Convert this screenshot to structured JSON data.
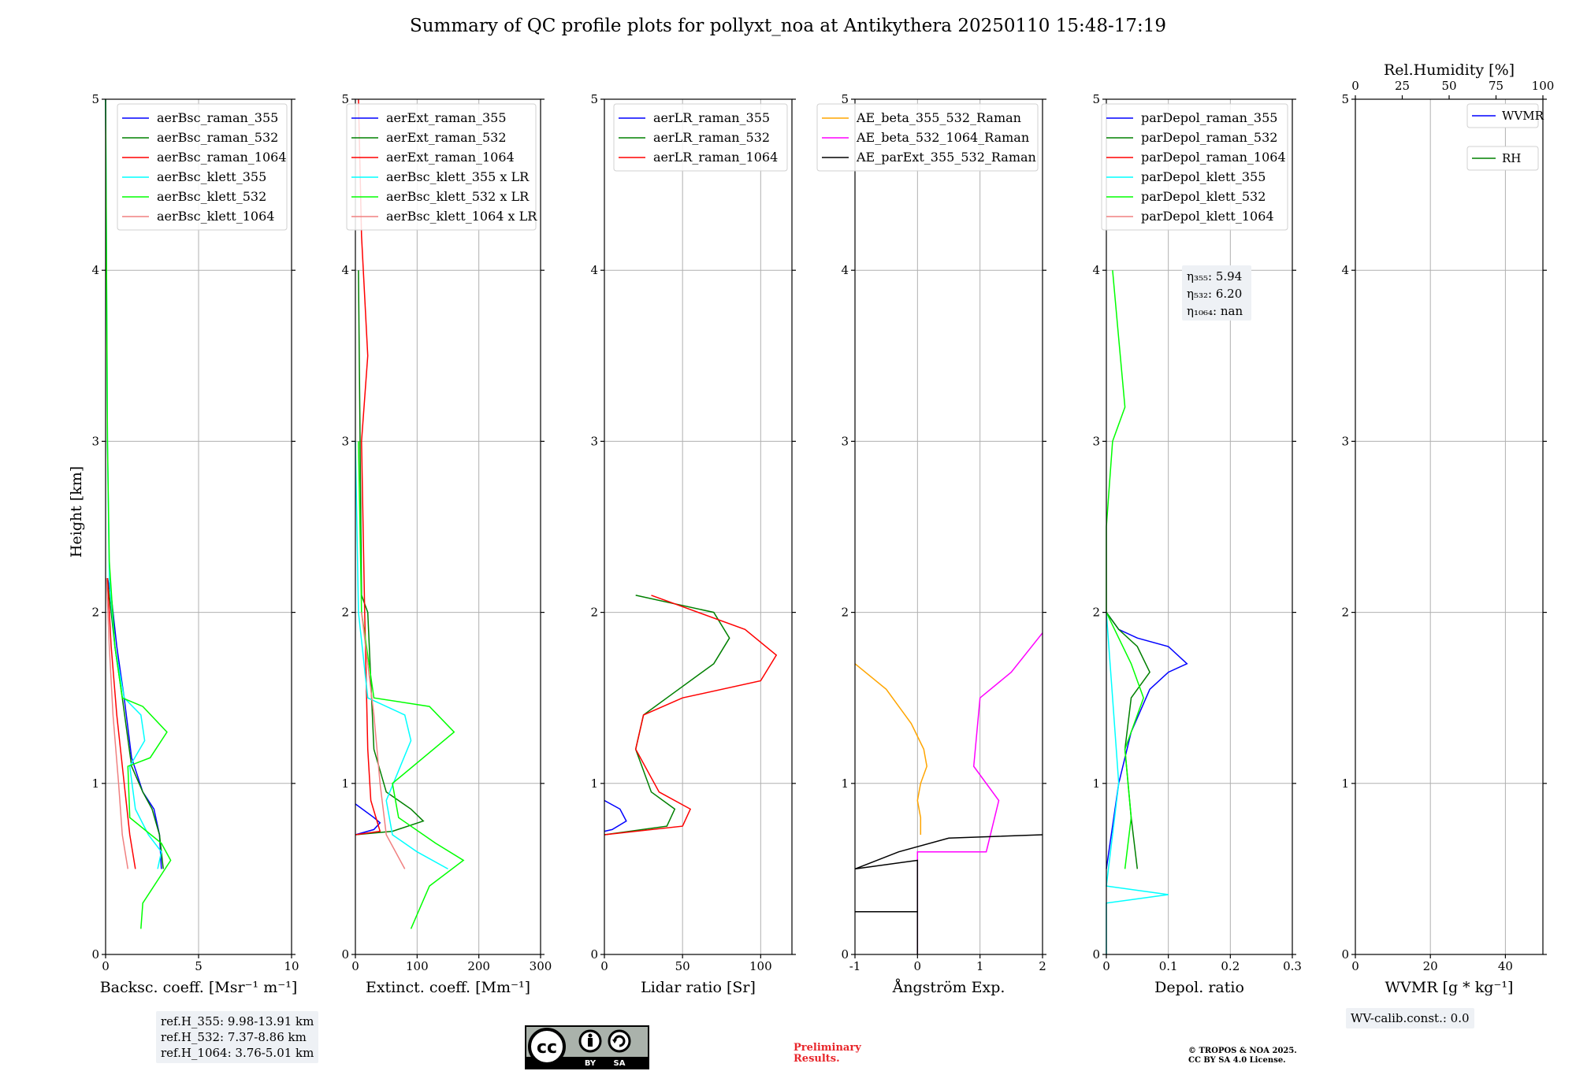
{
  "title": "Summary of QC profile plots for pollyxt_noa at Antikythera 20250110 15:48-17:19",
  "colors": {
    "c355": "#0000ff",
    "c532": "#008000",
    "c1064": "#ff0000",
    "k355": "#00ffff",
    "k532": "#00ff00",
    "k1064": "#f08080",
    "ae1": "#ffa500",
    "ae2": "#ff00ff",
    "ae3": "#000000"
  },
  "ylabel": "Height [km]",
  "ref_info": [
    "ref.H_355: 9.98-13.91 km",
    "ref.H_532: 7.37-8.86 km",
    "ref.H_1064: 3.76-5.01 km"
  ],
  "wv_calib": "WV-calib.const.: 0.0",
  "eta_info": [
    "η₃₅₅: 5.94",
    "η₅₃₂: 6.20",
    "η₁₀₆₄: nan"
  ],
  "preliminary": [
    "Preliminary",
    "Results."
  ],
  "copyright": [
    "© TROPOS & NOA 2025.",
    "CC BY SA 4.0 License."
  ],
  "license_icon": "cc-by-sa-icon",
  "chart_data": [
    {
      "type": "line",
      "xlabel": "Backsc. coeff. [Msr⁻¹ m⁻¹]",
      "xlim": [
        0,
        10
      ],
      "xticks": [
        0,
        5,
        10
      ],
      "ylim": [
        0,
        5
      ],
      "yticks": [
        0,
        1,
        2,
        3,
        4,
        5
      ],
      "legend": "top-right",
      "series": [
        {
          "name": "aerBsc_raman_355",
          "color": "c355",
          "points": [
            [
              3.0,
              0.5
            ],
            [
              2.9,
              0.7
            ],
            [
              2.6,
              0.85
            ],
            [
              2.0,
              0.95
            ],
            [
              1.4,
              1.15
            ],
            [
              1.0,
              1.5
            ],
            [
              0.6,
              1.8
            ],
            [
              0.3,
              2.1
            ],
            [
              0.1,
              2.2
            ]
          ]
        },
        {
          "name": "aerBsc_raman_532",
          "color": "c532",
          "points": [
            [
              3.1,
              0.5
            ],
            [
              2.9,
              0.7
            ],
            [
              2.5,
              0.85
            ],
            [
              2.0,
              0.95
            ],
            [
              1.4,
              1.1
            ],
            [
              0.9,
              1.5
            ],
            [
              0.5,
              1.8
            ],
            [
              0.2,
              2.1
            ],
            [
              0.1,
              2.2
            ]
          ]
        },
        {
          "name": "aerBsc_raman_1064",
          "color": "c1064",
          "points": [
            [
              1.6,
              0.5
            ],
            [
              1.3,
              0.7
            ],
            [
              1.0,
              1.0
            ],
            [
              0.6,
              1.4
            ],
            [
              0.3,
              1.8
            ],
            [
              0.1,
              2.2
            ]
          ]
        },
        {
          "name": "aerBsc_klett_355",
          "color": "k355",
          "points": [
            [
              2.8,
              0.5
            ],
            [
              3.0,
              0.6
            ],
            [
              2.3,
              0.7
            ],
            [
              1.6,
              0.85
            ],
            [
              1.3,
              1.1
            ],
            [
              2.1,
              1.25
            ],
            [
              1.9,
              1.4
            ],
            [
              1.0,
              1.5
            ],
            [
              0.5,
              1.8
            ],
            [
              0.2,
              2.2
            ],
            [
              0.1,
              3.0
            ],
            [
              0.05,
              4.0
            ],
            [
              0.0,
              5.0
            ]
          ]
        },
        {
          "name": "aerBsc_klett_532",
          "color": "k532",
          "points": [
            [
              1.9,
              0.15
            ],
            [
              2.0,
              0.3
            ],
            [
              3.5,
              0.55
            ],
            [
              3.0,
              0.65
            ],
            [
              1.3,
              0.8
            ],
            [
              1.2,
              1.1
            ],
            [
              2.4,
              1.15
            ],
            [
              3.3,
              1.3
            ],
            [
              2.0,
              1.45
            ],
            [
              0.9,
              1.5
            ],
            [
              0.5,
              1.8
            ],
            [
              0.2,
              2.3
            ],
            [
              0.1,
              3.0
            ],
            [
              0.05,
              4.0
            ],
            [
              0.0,
              5.0
            ]
          ]
        },
        {
          "name": "aerBsc_klett_1064",
          "color": "k1064",
          "points": [
            [
              1.2,
              0.5
            ],
            [
              0.9,
              0.7
            ],
            [
              0.7,
              1.0
            ],
            [
              0.4,
              1.4
            ],
            [
              0.2,
              1.8
            ],
            [
              0.05,
              2.2
            ]
          ]
        }
      ]
    },
    {
      "type": "line",
      "xlabel": "Extinct. coeff. [Mm⁻¹]",
      "xlim": [
        0,
        300
      ],
      "xticks": [
        0,
        100,
        200,
        300
      ],
      "ylim": [
        0,
        5
      ],
      "yticks": [
        0,
        1,
        2,
        3,
        4,
        5
      ],
      "legend": "top-right",
      "series": [
        {
          "name": "aerExt_raman_355",
          "color": "c355",
          "points": [
            [
              0,
              0.88
            ],
            [
              30,
              0.8
            ],
            [
              40,
              0.77
            ],
            [
              30,
              0.73
            ],
            [
              0,
              0.7
            ]
          ]
        },
        {
          "name": "aerExt_raman_532",
          "color": "c532",
          "points": [
            [
              0,
              0.7
            ],
            [
              60,
              0.72
            ],
            [
              110,
              0.78
            ],
            [
              90,
              0.85
            ],
            [
              50,
              0.95
            ],
            [
              30,
              1.2
            ],
            [
              25,
              1.6
            ],
            [
              20,
              2.0
            ],
            [
              10,
              2.1
            ],
            [
              5,
              4.0
            ]
          ]
        },
        {
          "name": "aerExt_raman_1064",
          "color": "c1064",
          "points": [
            [
              0,
              0.7
            ],
            [
              40,
              0.72
            ],
            [
              25,
              0.9
            ],
            [
              20,
              1.2
            ],
            [
              15,
              2.0
            ],
            [
              10,
              3.0
            ],
            [
              20,
              3.5
            ],
            [
              10,
              4.2
            ],
            [
              5,
              5.0
            ]
          ]
        },
        {
          "name": "aerBsc_klett_355 x LR",
          "color": "k355",
          "points": [
            [
              150,
              0.5
            ],
            [
              100,
              0.6
            ],
            [
              60,
              0.7
            ],
            [
              50,
              0.9
            ],
            [
              90,
              1.25
            ],
            [
              80,
              1.4
            ],
            [
              20,
              1.5
            ],
            [
              5,
              2.0
            ],
            [
              0,
              3.0
            ]
          ]
        },
        {
          "name": "aerBsc_klett_532 x LR",
          "color": "k532",
          "points": [
            [
              90,
              0.15
            ],
            [
              120,
              0.4
            ],
            [
              175,
              0.55
            ],
            [
              130,
              0.65
            ],
            [
              70,
              0.8
            ],
            [
              60,
              1.0
            ],
            [
              160,
              1.3
            ],
            [
              120,
              1.45
            ],
            [
              30,
              1.5
            ],
            [
              10,
              2.0
            ],
            [
              5,
              3.0
            ]
          ]
        },
        {
          "name": "aerBsc_klett_1064 x LR",
          "color": "k1064",
          "points": [
            [
              80,
              0.5
            ],
            [
              50,
              0.7
            ],
            [
              40,
              1.0
            ],
            [
              30,
              1.4
            ],
            [
              10,
              2.0
            ]
          ]
        }
      ]
    },
    {
      "type": "line",
      "xlabel": "Lidar ratio [Sr]",
      "xlim": [
        0,
        120
      ],
      "xticks": [
        0,
        50,
        100
      ],
      "ylim": [
        0,
        5
      ],
      "yticks": [
        0,
        1,
        2,
        3,
        4,
        5
      ],
      "legend": "top-right",
      "series": [
        {
          "name": "aerLR_raman_355",
          "color": "c355",
          "points": [
            [
              0,
              0.9
            ],
            [
              10,
              0.85
            ],
            [
              14,
              0.78
            ],
            [
              5,
              0.73
            ],
            [
              0,
              0.72
            ]
          ]
        },
        {
          "name": "aerLR_raman_532",
          "color": "c532",
          "points": [
            [
              0,
              0.7
            ],
            [
              40,
              0.75
            ],
            [
              45,
              0.85
            ],
            [
              30,
              0.95
            ],
            [
              20,
              1.2
            ],
            [
              25,
              1.4
            ],
            [
              40,
              1.5
            ],
            [
              70,
              1.7
            ],
            [
              80,
              1.85
            ],
            [
              70,
              2.0
            ],
            [
              20,
              2.1
            ]
          ]
        },
        {
          "name": "aerLR_raman_1064",
          "color": "c1064",
          "points": [
            [
              0,
              0.7
            ],
            [
              50,
              0.75
            ],
            [
              55,
              0.85
            ],
            [
              35,
              0.95
            ],
            [
              20,
              1.2
            ],
            [
              25,
              1.4
            ],
            [
              50,
              1.5
            ],
            [
              100,
              1.6
            ],
            [
              110,
              1.75
            ],
            [
              90,
              1.9
            ],
            [
              30,
              2.1
            ]
          ]
        }
      ]
    },
    {
      "type": "line",
      "xlabel": "Ångström Exp.",
      "xlim": [
        -1,
        2
      ],
      "xticks": [
        -1,
        0,
        1,
        2
      ],
      "ylim": [
        0,
        5
      ],
      "yticks": [
        0,
        1,
        2,
        3,
        4,
        5
      ],
      "legend": "top-right",
      "series": [
        {
          "name": "AE_beta_355_532_Raman",
          "color": "ae1",
          "points": [
            [
              -1,
              1.7
            ],
            [
              -0.5,
              1.55
            ],
            [
              -0.1,
              1.35
            ],
            [
              0.1,
              1.2
            ],
            [
              0.15,
              1.1
            ],
            [
              0.05,
              1.0
            ],
            [
              0.0,
              0.9
            ],
            [
              0.05,
              0.8
            ],
            [
              0.05,
              0.7
            ]
          ]
        },
        {
          "name": "AE_beta_532_1064_Raman",
          "color": "ae2",
          "points": [
            [
              0,
              0.0
            ],
            [
              0,
              0.6
            ],
            [
              1.1,
              0.6
            ],
            [
              1.3,
              0.9
            ],
            [
              0.9,
              1.1
            ],
            [
              1.0,
              1.5
            ],
            [
              1.5,
              1.65
            ],
            [
              2,
              1.88
            ]
          ]
        },
        {
          "name": "AE_parExt_355_532_Raman",
          "color": "ae3",
          "points": [
            [
              -1,
              0.25
            ],
            [
              0,
              0.25
            ],
            [
              0,
              0.0
            ],
            [
              0,
              0.55
            ],
            [
              -1,
              0.5
            ],
            [
              -0.3,
              0.6
            ],
            [
              0.5,
              0.68
            ],
            [
              2,
              0.7
            ]
          ]
        }
      ]
    },
    {
      "type": "line",
      "xlabel": "Depol. ratio",
      "xlim": [
        0.0,
        0.3
      ],
      "xticks": [
        0.0,
        0.1,
        0.2,
        0.3
      ],
      "ylim": [
        0,
        5
      ],
      "yticks": [
        0,
        1,
        2,
        3,
        4,
        5
      ],
      "legend": "top-right",
      "series": [
        {
          "name": "parDepol_raman_355",
          "color": "c355",
          "points": [
            [
              0.0,
              0.5
            ],
            [
              0.02,
              1.0
            ],
            [
              0.04,
              1.3
            ],
            [
              0.07,
              1.55
            ],
            [
              0.1,
              1.65
            ],
            [
              0.13,
              1.7
            ],
            [
              0.1,
              1.8
            ],
            [
              0.05,
              1.85
            ],
            [
              0.02,
              1.9
            ],
            [
              0.0,
              2.0
            ]
          ]
        },
        {
          "name": "parDepol_raman_532",
          "color": "c532",
          "points": [
            [
              0.05,
              0.5
            ],
            [
              0.04,
              0.8
            ],
            [
              0.03,
              1.2
            ],
            [
              0.04,
              1.5
            ],
            [
              0.07,
              1.65
            ],
            [
              0.05,
              1.8
            ],
            [
              0.02,
              1.9
            ],
            [
              0.0,
              2.0
            ]
          ]
        },
        {
          "name": "parDepol_raman_1064",
          "color": "c1064",
          "points": []
        },
        {
          "name": "parDepol_klett_355",
          "color": "k355",
          "points": [
            [
              0.0,
              0.0
            ],
            [
              0.0,
              0.3
            ],
            [
              0.1,
              0.35
            ],
            [
              0.0,
              0.4
            ],
            [
              0.02,
              1.0
            ],
            [
              0.01,
              1.5
            ],
            [
              0.0,
              2.0
            ]
          ]
        },
        {
          "name": "parDepol_klett_532",
          "color": "k532",
          "points": [
            [
              0.03,
              0.5
            ],
            [
              0.04,
              0.8
            ],
            [
              0.03,
              1.2
            ],
            [
              0.06,
              1.5
            ],
            [
              0.04,
              1.7
            ],
            [
              0.02,
              1.85
            ],
            [
              0.0,
              2.0
            ],
            [
              0.0,
              2.5
            ],
            [
              0.01,
              3.0
            ],
            [
              0.03,
              3.2
            ],
            [
              0.02,
              3.6
            ],
            [
              0.01,
              4.0
            ]
          ]
        },
        {
          "name": "parDepol_klett_1064",
          "color": "k1064",
          "points": []
        }
      ]
    },
    {
      "type": "line",
      "xlabel": "WVMR [g * kg⁻¹]",
      "xlim": [
        0,
        50
      ],
      "xticks": [
        0,
        20,
        40
      ],
      "x2label": "Rel.Humidity [%]",
      "x2lim": [
        0,
        100
      ],
      "x2ticks": [
        0,
        25,
        50,
        75,
        100
      ],
      "ylim": [
        0,
        5
      ],
      "yticks": [
        0,
        1,
        2,
        3,
        4,
        5
      ],
      "legend": "top-right",
      "series": [
        {
          "name": "WVMR",
          "color": "c355",
          "points": []
        },
        {
          "name": "RH",
          "color": "c532",
          "points": []
        }
      ]
    }
  ]
}
